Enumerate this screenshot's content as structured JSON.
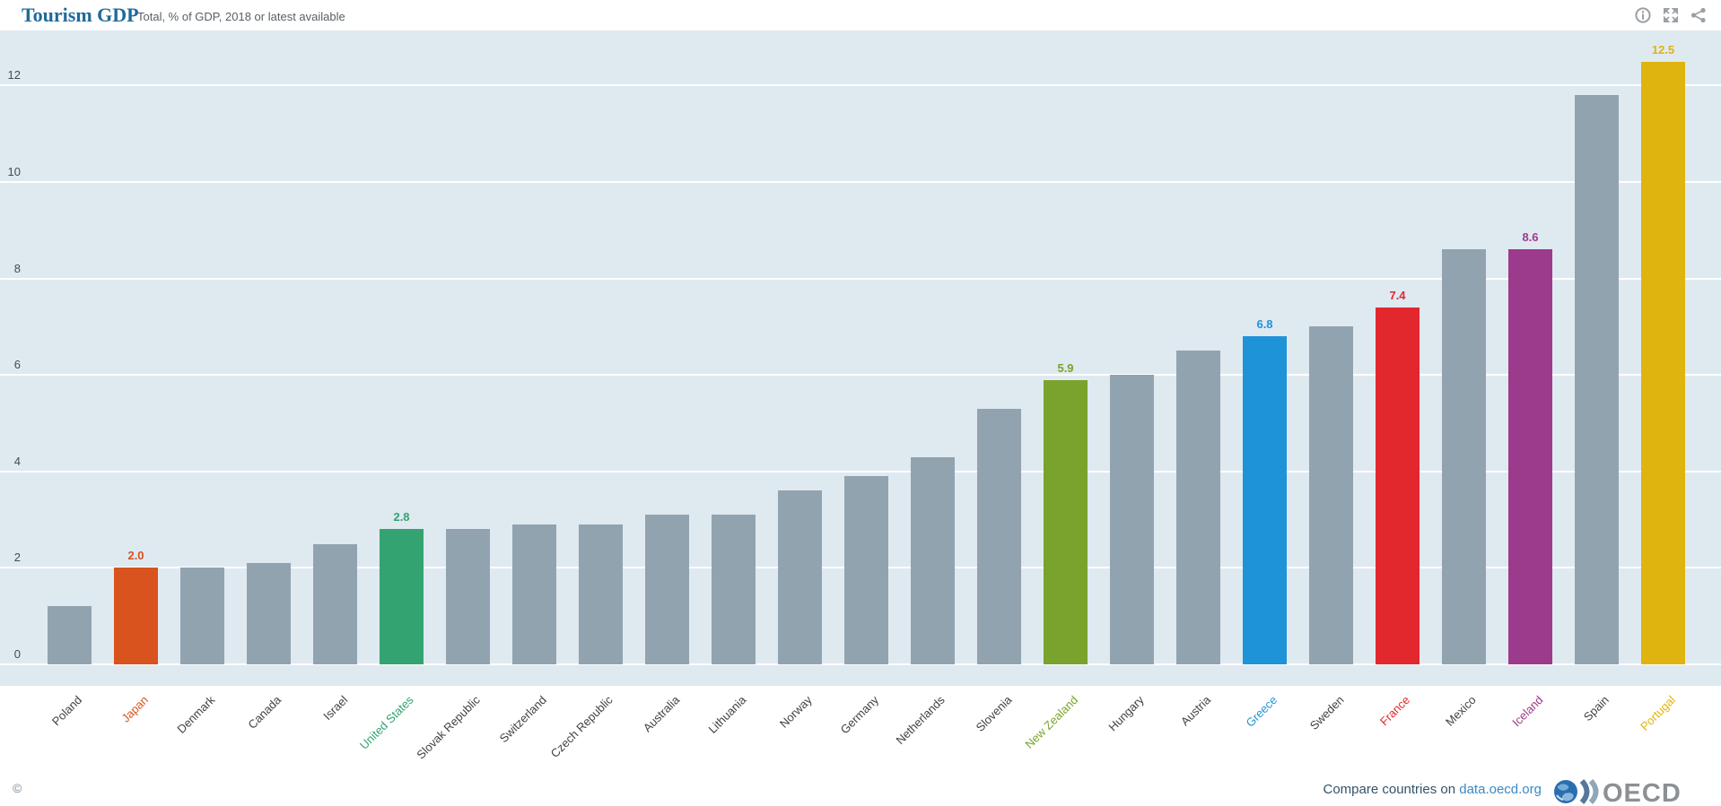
{
  "header": {
    "title": "Tourism GDP",
    "subtitle": "Total, % of GDP, 2018 or latest available",
    "toolbar_icons": [
      {
        "name": "info-icon"
      },
      {
        "name": "fullscreen-icon"
      },
      {
        "name": "share-icon"
      }
    ]
  },
  "chart_data": {
    "type": "bar",
    "title": "Tourism GDP",
    "subtitle": "Total, % of GDP, 2018 or latest available",
    "ylabel": "% of GDP",
    "ylim": [
      0,
      13.2
    ],
    "yticks": [
      0,
      2,
      4,
      6,
      8,
      10,
      12
    ],
    "grid": true,
    "legend_position": "none",
    "plot_bg": "#dfe9f0",
    "grid_color": "#ffffff",
    "default_bar_color": "#92a3b0",
    "bars": [
      {
        "label": "Poland",
        "value": 1.2
      },
      {
        "label": "Japan",
        "value": 2.0,
        "color": "#d9531f",
        "show_value": true
      },
      {
        "label": "Denmark",
        "value": 2.0
      },
      {
        "label": "Canada",
        "value": 2.1
      },
      {
        "label": "Israel",
        "value": 2.5
      },
      {
        "label": "United States",
        "value": 2.8,
        "color": "#33a371",
        "show_value": true
      },
      {
        "label": "Slovak Republic",
        "value": 2.8
      },
      {
        "label": "Switzerland",
        "value": 2.9
      },
      {
        "label": "Czech Republic",
        "value": 2.9
      },
      {
        "label": "Australia",
        "value": 3.1
      },
      {
        "label": "Lithuania",
        "value": 3.1
      },
      {
        "label": "Norway",
        "value": 3.6
      },
      {
        "label": "Germany",
        "value": 3.9
      },
      {
        "label": "Netherlands",
        "value": 4.3
      },
      {
        "label": "Slovenia",
        "value": 5.3
      },
      {
        "label": "New Zealand",
        "value": 5.9,
        "color": "#79a32c",
        "show_value": true
      },
      {
        "label": "Hungary",
        "value": 6.0
      },
      {
        "label": "Austria",
        "value": 6.5
      },
      {
        "label": "Greece",
        "value": 6.8,
        "color": "#1f93d8",
        "show_value": true
      },
      {
        "label": "Sweden",
        "value": 7.0
      },
      {
        "label": "France",
        "value": 7.4,
        "color": "#e2282c",
        "show_value": true
      },
      {
        "label": "Mexico",
        "value": 8.6
      },
      {
        "label": "Iceland",
        "value": 8.6,
        "color": "#9c3a8c",
        "show_value": true
      },
      {
        "label": "Spain",
        "value": 11.8
      },
      {
        "label": "Portugal",
        "value": 12.5,
        "color": "#dfb40e",
        "show_value": true
      }
    ]
  },
  "footer": {
    "copyright": "©",
    "compare_text": "Compare countries on",
    "compare_link": "data.oecd.org",
    "logo_text": "OECD"
  }
}
